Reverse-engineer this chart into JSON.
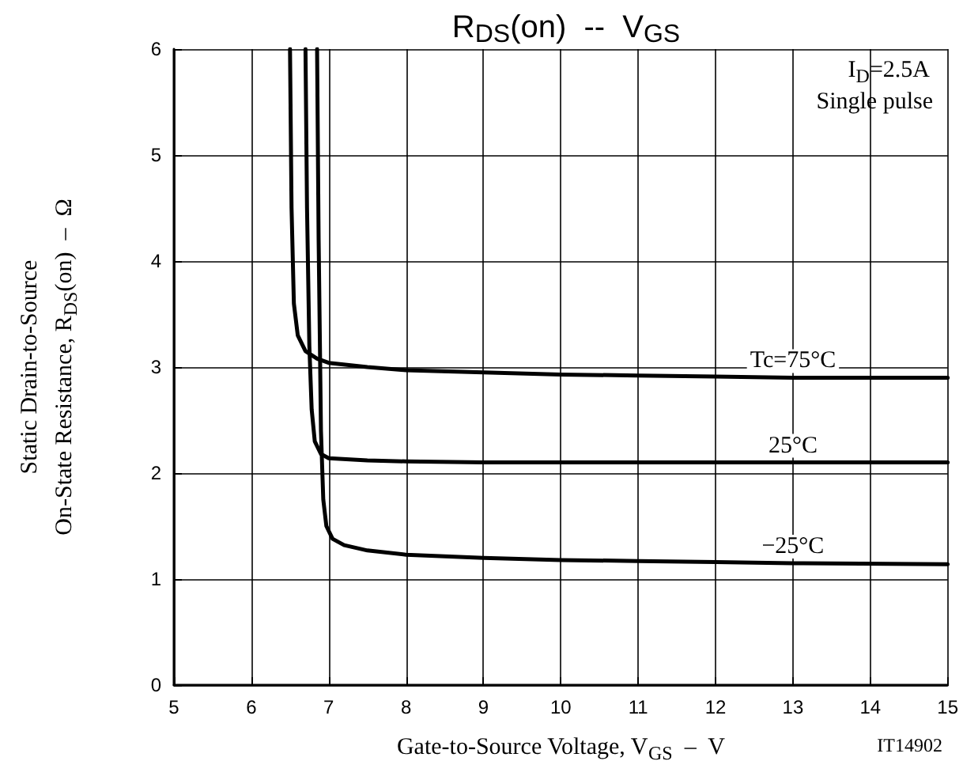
{
  "chart_data": {
    "type": "line",
    "title": "R$_{DS}$(on)  --  V$_{GS}$",
    "xlabel": "Gate-to-Source Voltage, V$_{GS}$  –  V",
    "ylabel": "Static Drain-to-Source\nOn-State Resistance, R$_{DS}$(on)  –  Ω",
    "annotations": [
      "I$_{D}$=2.5A",
      "Single pulse",
      "IT14902"
    ],
    "series": [
      {
        "name": "Tc=75°C",
        "color": "#000000",
        "x": [
          6.5,
          6.52,
          6.55,
          6.6,
          6.7,
          6.85,
          7,
          7.5,
          8,
          9,
          10,
          11,
          12,
          13,
          15
        ],
        "values": [
          6,
          4.5,
          3.6,
          3.3,
          3.15,
          3.08,
          3.04,
          3,
          2.97,
          2.95,
          2.93,
          2.92,
          2.91,
          2.9,
          2.9
        ]
      },
      {
        "name": "25°C",
        "color": "#000000",
        "x": [
          6.7,
          6.72,
          6.75,
          6.78,
          6.82,
          6.9,
          7,
          7.5,
          8,
          9,
          10,
          11,
          12,
          13,
          15
        ],
        "values": [
          6,
          4.5,
          3.2,
          2.6,
          2.3,
          2.18,
          2.14,
          2.12,
          2.11,
          2.1,
          2.1,
          2.1,
          2.1,
          2.1,
          2.1
        ]
      },
      {
        "name": "−25°C",
        "color": "#000000",
        "x": [
          6.85,
          6.87,
          6.9,
          6.93,
          6.97,
          7.05,
          7.2,
          7.5,
          8,
          9,
          10,
          11,
          12,
          13,
          15
        ],
        "values": [
          6,
          4.2,
          2.4,
          1.75,
          1.5,
          1.38,
          1.32,
          1.27,
          1.23,
          1.2,
          1.18,
          1.17,
          1.16,
          1.15,
          1.14
        ]
      }
    ],
    "xlim": [
      5,
      15
    ],
    "xticks": [
      5,
      6,
      7,
      8,
      9,
      10,
      11,
      12,
      13,
      14,
      15
    ],
    "ylim": [
      0,
      6
    ],
    "yticks": [
      0,
      1,
      2,
      3,
      4,
      5,
      6
    ],
    "grid": true,
    "marker": "none",
    "line_style": "solid"
  }
}
